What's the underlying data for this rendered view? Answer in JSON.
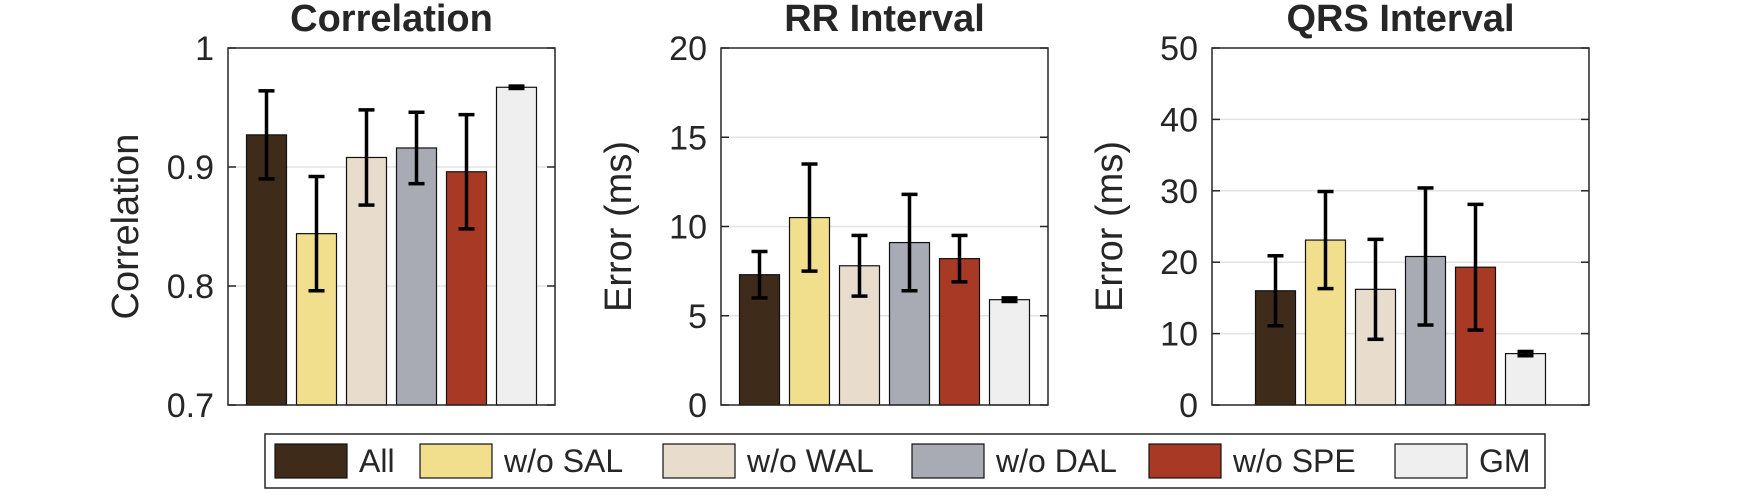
{
  "legend": {
    "items": [
      "All",
      "w/o SAL",
      "w/o WAL",
      "w/o DAL",
      "w/o SPE",
      "GM"
    ]
  },
  "colors": [
    "#3e2b1a",
    "#f2df8e",
    "#e8dccd",
    "#a8abb3",
    "#a83a25",
    "#efefef"
  ],
  "chart_data": [
    {
      "type": "bar",
      "title": "Correlation",
      "xlabel": "",
      "ylabel": "Correlation",
      "ylim": [
        0.7,
        1
      ],
      "yticks": [
        0.7,
        0.8,
        0.9,
        1
      ],
      "ytick_labels": [
        "0.7",
        "0.8",
        "0.9",
        "1"
      ],
      "grid": true,
      "categories": [
        "All",
        "w/o SAL",
        "w/o WAL",
        "w/o DAL",
        "w/o SPE",
        "GM"
      ],
      "values": [
        0.927,
        0.844,
        0.908,
        0.916,
        0.896,
        0.967
      ],
      "errors": [
        0.037,
        0.048,
        0.04,
        0.03,
        0.048,
        0.001
      ]
    },
    {
      "type": "bar",
      "title": "RR Interval",
      "xlabel": "",
      "ylabel": "Error (ms)",
      "ylim": [
        0,
        20
      ],
      "yticks": [
        0,
        5,
        10,
        15,
        20
      ],
      "ytick_labels": [
        "0",
        "5",
        "10",
        "15",
        "20"
      ],
      "grid": true,
      "categories": [
        "All",
        "w/o SAL",
        "w/o WAL",
        "w/o DAL",
        "w/o SPE",
        "GM"
      ],
      "values": [
        7.3,
        10.5,
        7.8,
        9.1,
        8.2,
        5.9
      ],
      "errors": [
        1.3,
        3.0,
        1.7,
        2.7,
        1.3,
        0.1
      ]
    },
    {
      "type": "bar",
      "title": "QRS Interval",
      "xlabel": "",
      "ylabel": "Error (ms)",
      "ylim": [
        0,
        50
      ],
      "yticks": [
        0,
        10,
        20,
        30,
        40,
        50
      ],
      "ytick_labels": [
        "0",
        "10",
        "20",
        "30",
        "40",
        "50"
      ],
      "grid": true,
      "categories": [
        "All",
        "w/o SAL",
        "w/o WAL",
        "w/o DAL",
        "w/o SPE",
        "GM"
      ],
      "values": [
        16.0,
        23.1,
        16.2,
        20.8,
        19.3,
        7.2
      ],
      "errors": [
        4.9,
        6.8,
        7.0,
        9.6,
        8.8,
        0.3
      ]
    }
  ]
}
